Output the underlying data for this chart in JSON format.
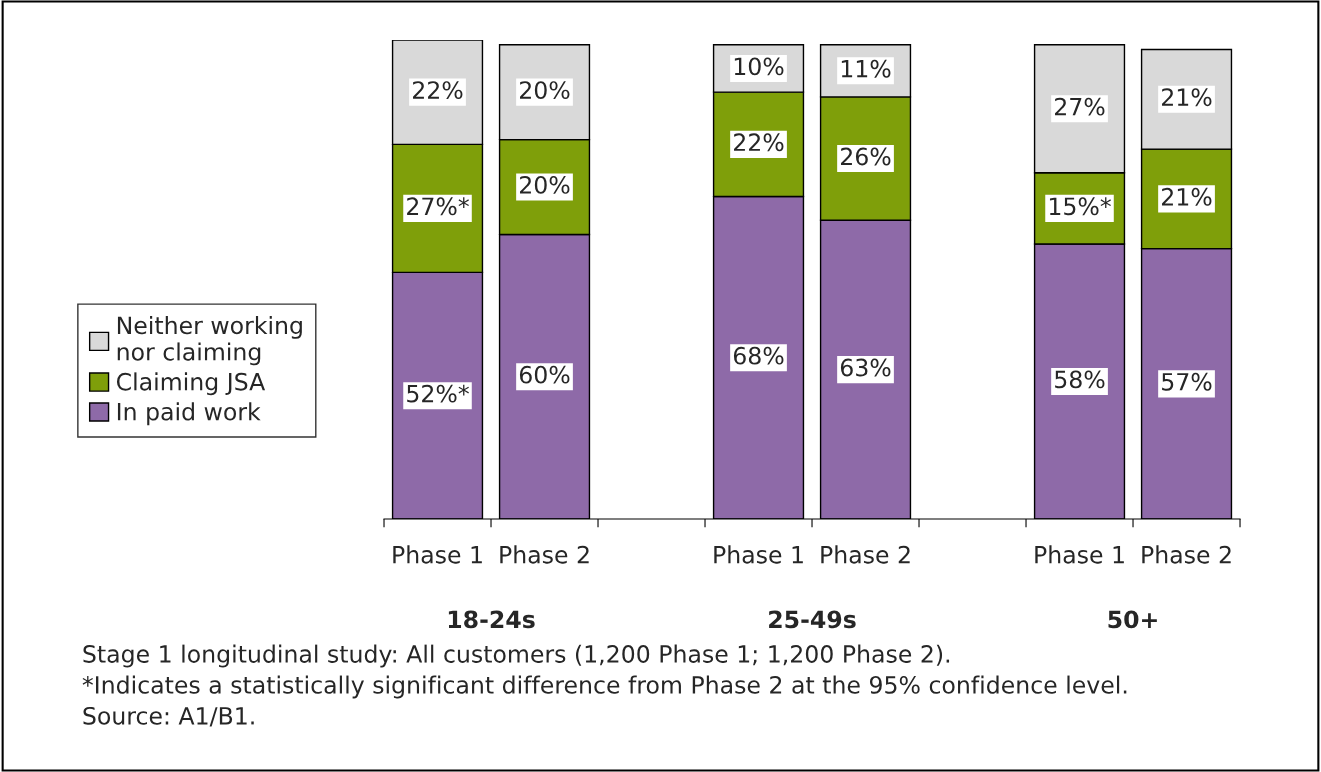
{
  "chart_data": {
    "type": "bar",
    "stacked": true,
    "categories": [
      "Phase 1",
      "Phase 2",
      null,
      "Phase 1",
      "Phase 2",
      null,
      "Phase 1",
      "Phase 2"
    ],
    "series": [
      {
        "name": "In paid work",
        "color": "#8e6aa8",
        "values": [
          52,
          60,
          null,
          68,
          63,
          null,
          58,
          57
        ],
        "value_labels": [
          "52%*",
          "60%",
          null,
          "68%",
          "63%",
          null,
          "58%",
          "57%"
        ]
      },
      {
        "name": "Claiming JSA",
        "color": "#7f9f0a",
        "values": [
          27,
          20,
          null,
          22,
          26,
          null,
          15,
          21
        ],
        "value_labels": [
          "27%*",
          "20%",
          null,
          "22%",
          "26%",
          null,
          "15%*",
          "21%"
        ]
      },
      {
        "name": "Neither working\nnor claiming",
        "color": "#d9d9d9",
        "values": [
          22,
          20,
          null,
          10,
          11,
          null,
          27,
          21
        ],
        "value_labels": [
          "22%",
          "20%",
          null,
          "10%",
          "11%",
          null,
          "27%",
          "21%"
        ]
      }
    ],
    "annotations": [
      "18-24s",
      "25-49s",
      "50+",
      "Stage 1 longitudinal study: All customers (1,200 Phase 1; 1,200 Phase 2).\n*Indicates a statistically significant difference from Phase 2 at the 95% confidence level.\nSource: A1/B1."
    ],
    "legend": "left",
    "grid": false
  }
}
